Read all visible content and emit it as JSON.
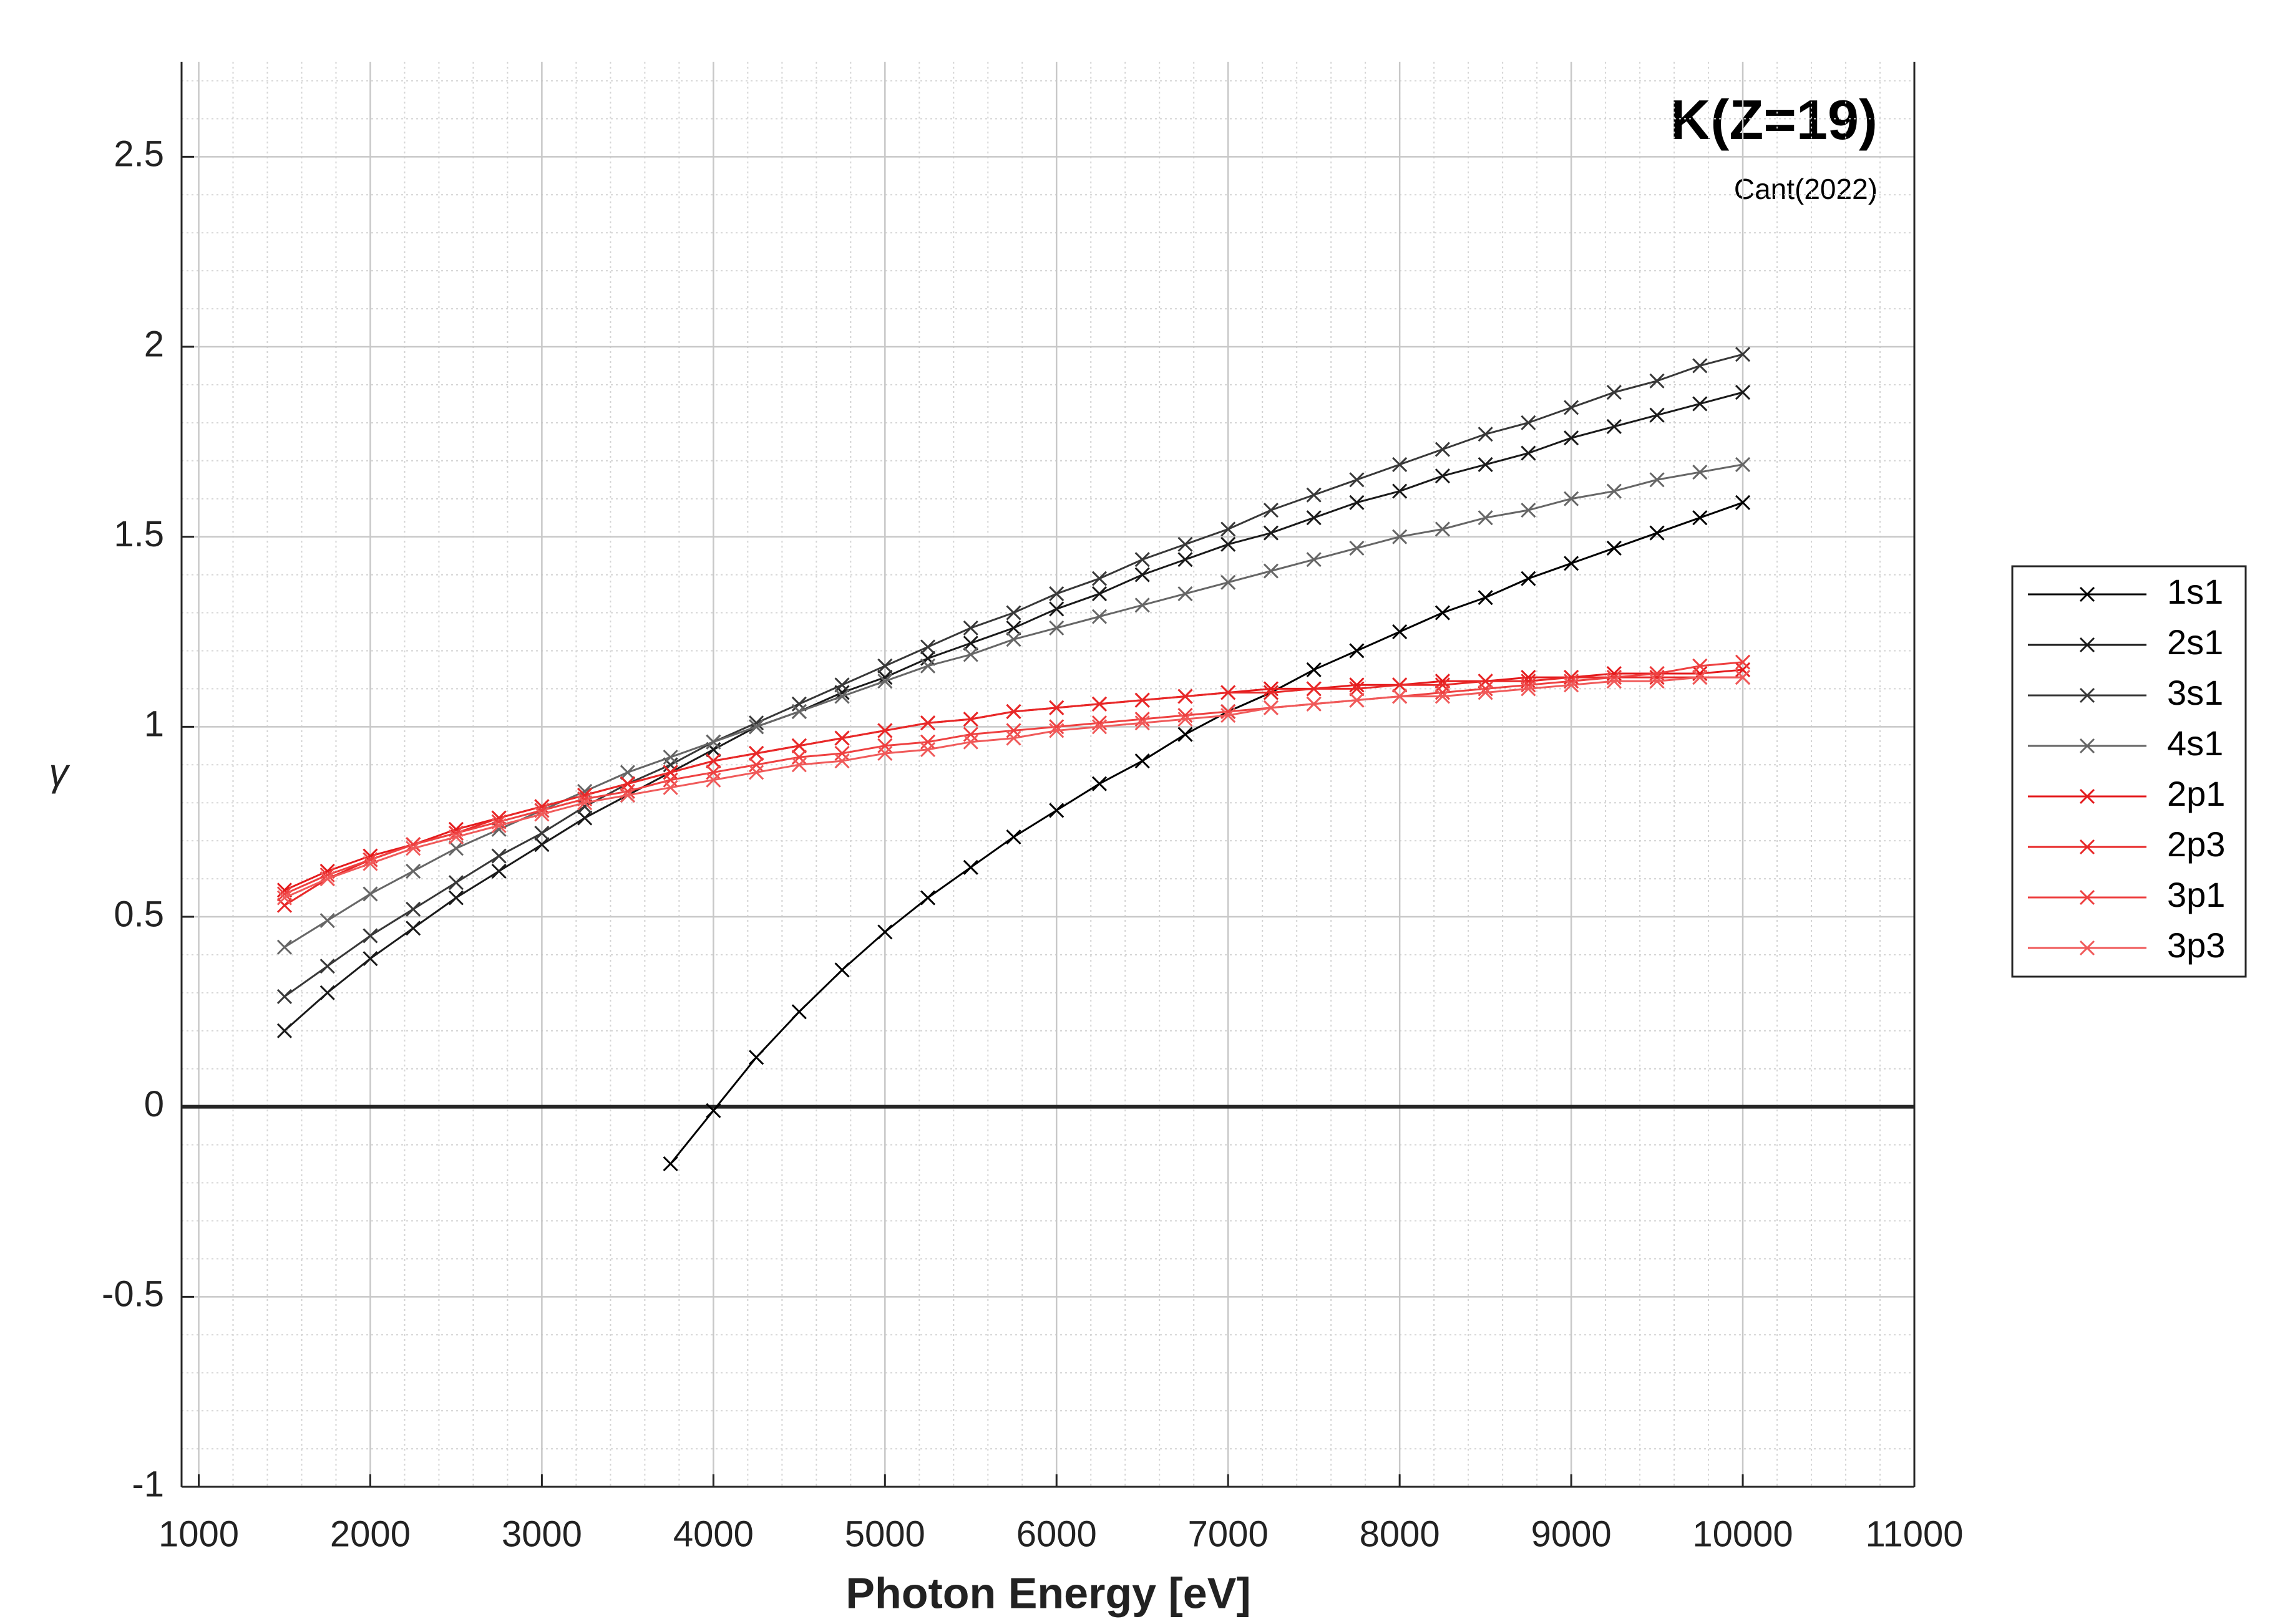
{
  "chart_data": {
    "type": "line",
    "title": "K(Z=19)",
    "subtitle": "Cant(2022)",
    "xlabel": "Photon Energy [eV]",
    "ylabel": "γ",
    "x": [
      1500,
      1750,
      2000,
      2250,
      2500,
      2750,
      3000,
      3250,
      3500,
      3750,
      4000,
      4250,
      4500,
      4750,
      5000,
      5250,
      5500,
      5750,
      6000,
      6250,
      6500,
      6750,
      7000,
      7250,
      7500,
      7750,
      8000,
      8250,
      8500,
      8750,
      9000,
      9250,
      9500,
      9750,
      10000
    ],
    "series": [
      {
        "name": "1s1",
        "color": "#000000",
        "values": [
          null,
          null,
          null,
          null,
          null,
          null,
          null,
          null,
          null,
          -0.15,
          -0.01,
          0.13,
          0.25,
          0.36,
          0.46,
          0.55,
          0.63,
          0.71,
          0.78,
          0.85,
          0.91,
          0.98,
          1.04,
          1.09,
          1.15,
          1.2,
          1.25,
          1.3,
          1.34,
          1.39,
          1.43,
          1.47,
          1.51,
          1.55,
          1.59
        ]
      },
      {
        "name": "2s1",
        "color": "#1a1a1a",
        "values": [
          0.2,
          0.3,
          0.39,
          0.47,
          0.55,
          0.62,
          0.69,
          0.76,
          0.82,
          0.88,
          0.94,
          1.0,
          1.04,
          1.09,
          1.13,
          1.18,
          1.22,
          1.26,
          1.31,
          1.35,
          1.4,
          1.44,
          1.48,
          1.51,
          1.55,
          1.59,
          1.62,
          1.66,
          1.69,
          1.72,
          1.76,
          1.79,
          1.82,
          1.85,
          1.88
        ]
      },
      {
        "name": "3s1",
        "color": "#383838",
        "values": [
          0.29,
          0.37,
          0.45,
          0.52,
          0.59,
          0.66,
          0.72,
          0.79,
          0.85,
          0.9,
          0.96,
          1.01,
          1.06,
          1.11,
          1.16,
          1.21,
          1.26,
          1.3,
          1.35,
          1.39,
          1.44,
          1.48,
          1.52,
          1.57,
          1.61,
          1.65,
          1.69,
          1.73,
          1.77,
          1.8,
          1.84,
          1.88,
          1.91,
          1.95,
          1.98
        ]
      },
      {
        "name": "4s1",
        "color": "#666666",
        "values": [
          0.42,
          0.49,
          0.56,
          0.62,
          0.68,
          0.73,
          0.78,
          0.83,
          0.88,
          0.92,
          0.96,
          1.0,
          1.04,
          1.08,
          1.12,
          1.16,
          1.19,
          1.23,
          1.26,
          1.29,
          1.32,
          1.35,
          1.38,
          1.41,
          1.44,
          1.47,
          1.5,
          1.52,
          1.55,
          1.57,
          1.6,
          1.62,
          1.65,
          1.67,
          1.69
        ]
      },
      {
        "name": "2p1",
        "color": "#e41a1c",
        "values": [
          0.57,
          0.62,
          0.66,
          0.69,
          0.73,
          0.76,
          0.79,
          0.82,
          0.85,
          0.88,
          0.91,
          0.93,
          0.95,
          0.97,
          0.99,
          1.01,
          1.02,
          1.04,
          1.05,
          1.06,
          1.07,
          1.08,
          1.09,
          1.1,
          1.1,
          1.11,
          1.11,
          1.12,
          1.12,
          1.13,
          1.13,
          1.14,
          1.14,
          1.14,
          1.15
        ]
      },
      {
        "name": "2p3",
        "color": "#e82828",
        "values": [
          0.53,
          0.6,
          0.65,
          0.69,
          0.72,
          0.76,
          0.79,
          0.82,
          0.85,
          0.88,
          0.91,
          0.93,
          0.95,
          0.97,
          0.99,
          1.01,
          1.02,
          1.04,
          1.05,
          1.06,
          1.07,
          1.08,
          1.09,
          1.09,
          1.1,
          1.1,
          1.11,
          1.11,
          1.12,
          1.12,
          1.13,
          1.13,
          1.13,
          1.13,
          1.13
        ]
      },
      {
        "name": "3p1",
        "color": "#ee4040",
        "values": [
          0.56,
          0.61,
          0.65,
          0.69,
          0.72,
          0.75,
          0.78,
          0.81,
          0.83,
          0.86,
          0.88,
          0.9,
          0.92,
          0.93,
          0.95,
          0.96,
          0.98,
          0.99,
          1.0,
          1.01,
          1.02,
          1.03,
          1.04,
          1.05,
          1.06,
          1.07,
          1.08,
          1.09,
          1.1,
          1.11,
          1.12,
          1.13,
          1.14,
          1.16,
          1.17
        ]
      },
      {
        "name": "3p3",
        "color": "#f05a5a",
        "values": [
          0.55,
          0.6,
          0.64,
          0.68,
          0.71,
          0.74,
          0.77,
          0.8,
          0.82,
          0.84,
          0.86,
          0.88,
          0.9,
          0.91,
          0.93,
          0.94,
          0.96,
          0.97,
          0.99,
          1.0,
          1.01,
          1.02,
          1.03,
          1.05,
          1.06,
          1.07,
          1.08,
          1.08,
          1.09,
          1.1,
          1.11,
          1.12,
          1.12,
          1.13,
          1.13
        ]
      }
    ],
    "xlim": [
      900,
      11000
    ],
    "xticks": [
      1000,
      2000,
      3000,
      4000,
      5000,
      6000,
      7000,
      8000,
      9000,
      10000,
      11000
    ],
    "ylim": [
      -1,
      2.75
    ],
    "yticks": [
      -1,
      -0.5,
      0,
      0.5,
      1,
      1.5,
      2,
      2.5
    ],
    "hline": 0,
    "grid": true,
    "minor_grid": true,
    "legend": "outside right",
    "marker": "x"
  }
}
